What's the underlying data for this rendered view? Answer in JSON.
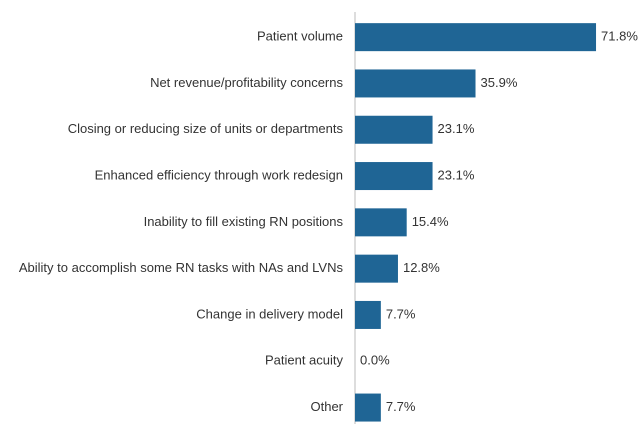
{
  "chart_data": {
    "type": "barh",
    "categories": [
      "Patient volume",
      "Net revenue/profitability concerns",
      "Closing or reducing size of units or departments",
      "Enhanced efficiency through work redesign",
      "Inability to fill existing RN positions",
      "Ability to accomplish some RN tasks with NAs and LVNs",
      "Change in delivery model",
      "Patient acuity",
      "Other"
    ],
    "values": [
      71.8,
      35.9,
      23.1,
      23.1,
      15.4,
      12.8,
      7.7,
      0,
      7.7
    ],
    "value_labels": [
      "71.8%",
      "35.9%",
      "23.1%",
      "23.1%",
      "15.4%",
      "12.8%",
      "7.7%",
      "0.0%",
      "7.7%"
    ],
    "color": "#1f6595",
    "xlim": [
      0,
      100
    ]
  }
}
